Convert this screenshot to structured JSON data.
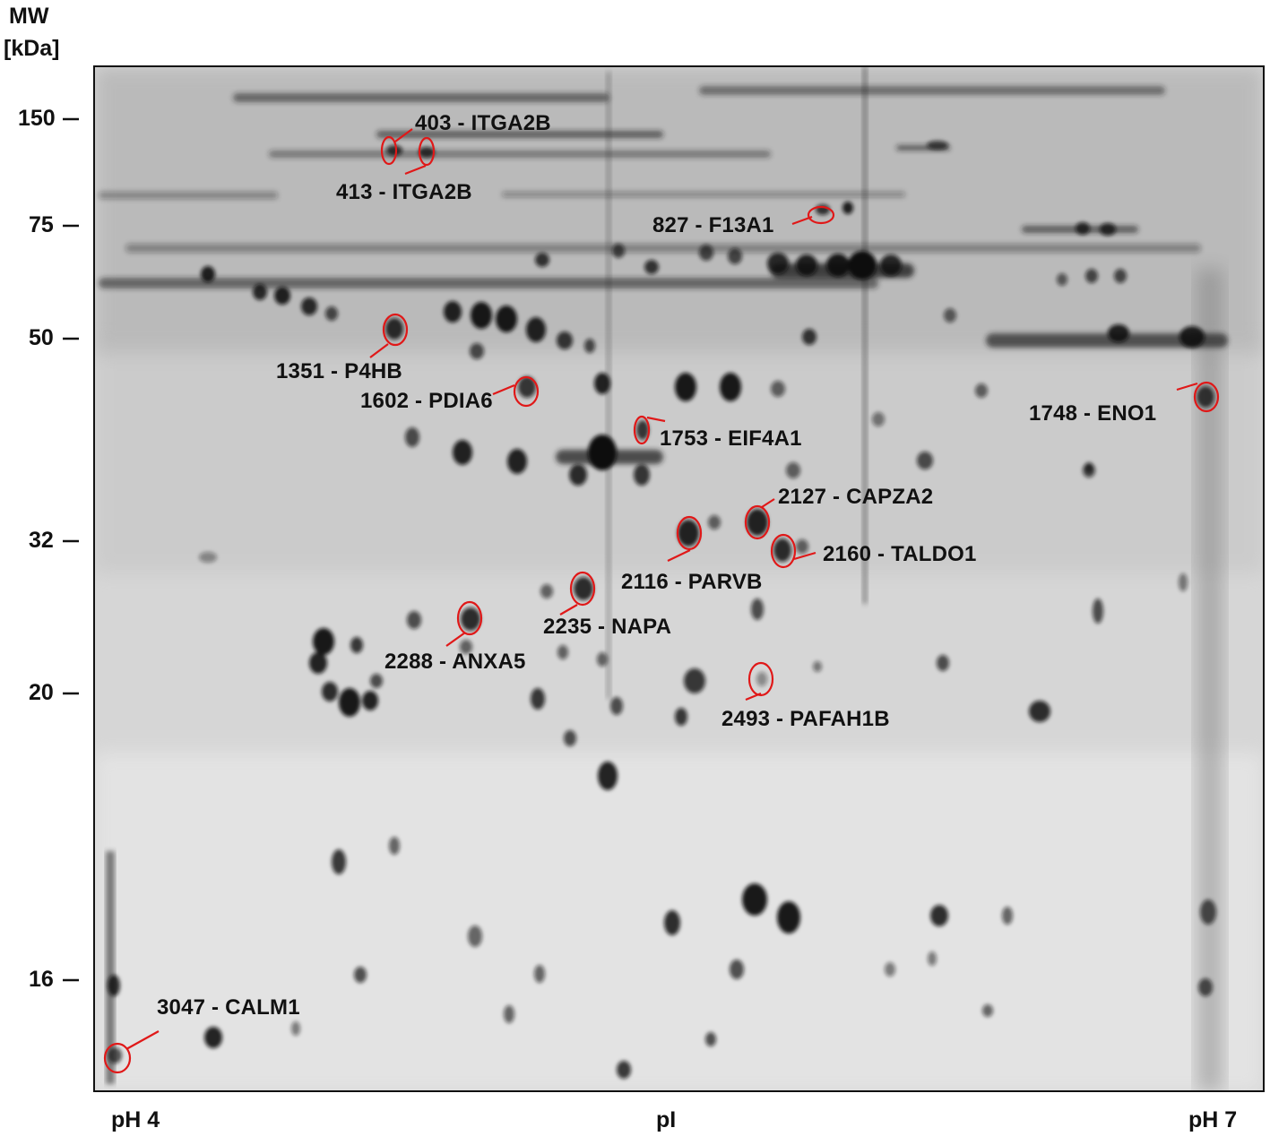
{
  "axis": {
    "mw_title_line1": "MW",
    "mw_title_line2": "[kDa]",
    "mw_ticks": [
      "150",
      "75",
      "50",
      "32",
      "20",
      "16"
    ],
    "ph_left": "pH 4",
    "pi_label": "pI",
    "ph_right": "pH 7"
  },
  "spots": [
    {
      "id": "403",
      "gene": "ITGA2B",
      "label": "403 - ITGA2B"
    },
    {
      "id": "413",
      "gene": "ITGA2B",
      "label": "413 - ITGA2B"
    },
    {
      "id": "827",
      "gene": "F13A1",
      "label": "827 - F13A1"
    },
    {
      "id": "1351",
      "gene": "P4HB",
      "label": "1351 - P4HB"
    },
    {
      "id": "1602",
      "gene": "PDIA6",
      "label": "1602 - PDIA6"
    },
    {
      "id": "1753",
      "gene": "EIF4A1",
      "label": "1753 - EIF4A1"
    },
    {
      "id": "1748",
      "gene": "ENO1",
      "label": "1748 - ENO1"
    },
    {
      "id": "2127",
      "gene": "CAPZA2",
      "label": "2127 - CAPZA2"
    },
    {
      "id": "2160",
      "gene": "TALDO1",
      "label": "2160 - TALDO1"
    },
    {
      "id": "2116",
      "gene": "PARVB",
      "label": "2116 - PARVB"
    },
    {
      "id": "2235",
      "gene": "NAPA",
      "label": "2235 - NAPA"
    },
    {
      "id": "2288",
      "gene": "ANXA5",
      "label": "2288 - ANXA5"
    },
    {
      "id": "2493",
      "gene": "PAFAH1B",
      "label": "2493 - PAFAH1B"
    },
    {
      "id": "3047",
      "gene": "CALM1",
      "label": "3047 - CALM1"
    }
  ],
  "colors": {
    "gel_background": "#d6d6d6",
    "spot": "#111111",
    "marker": "#e01818",
    "text": "#111111"
  }
}
